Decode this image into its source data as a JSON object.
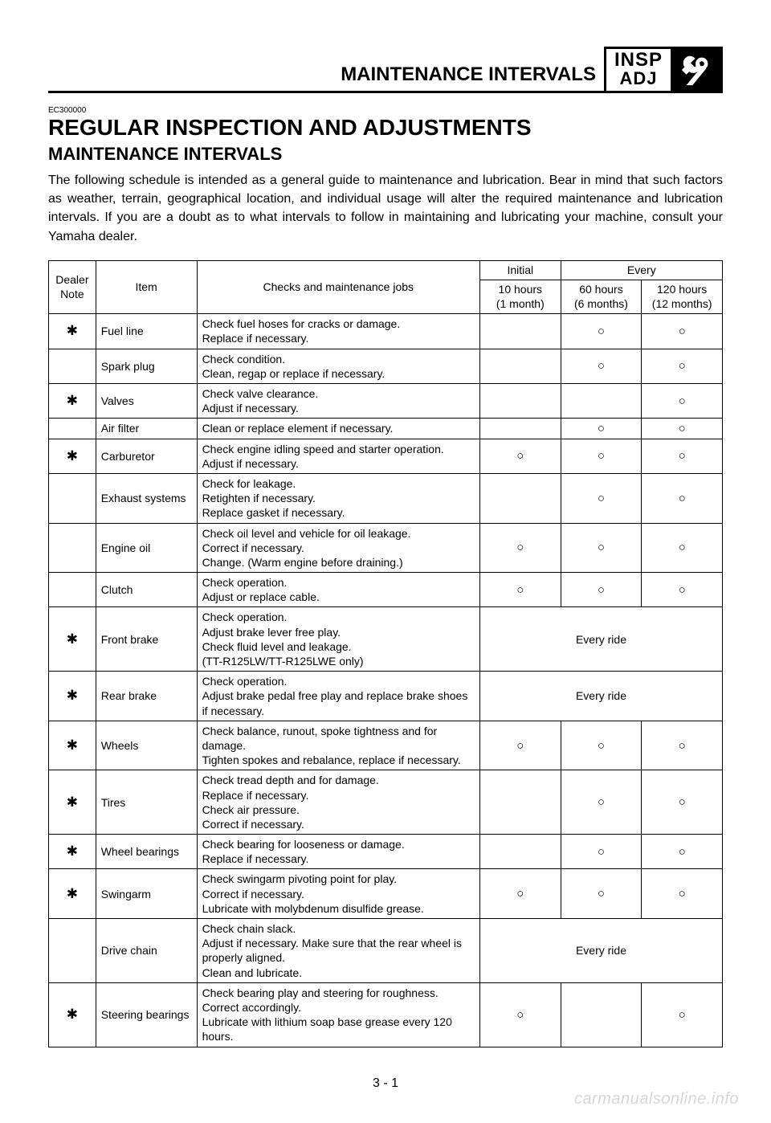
{
  "header": {
    "page_header_title": "MAINTENANCE INTERVALS",
    "insp_line1": "INSP",
    "insp_line2": "ADJ"
  },
  "section": {
    "ec_code": "EC300000",
    "title": "REGULAR INSPECTION AND ADJUSTMENTS",
    "subtitle": "MAINTENANCE INTERVALS",
    "intro": "The following schedule is intended as a general guide to maintenance and lubrication. Bear in mind that such factors as weather, terrain, geographical location, and individual usage will alter the required maintenance and lubrication intervals. If you are a doubt as to what intervals to follow in maintaining and lubricating your machine, consult your Yamaha dealer."
  },
  "table": {
    "head": {
      "dealer_note": "Dealer\nNote",
      "item": "Item",
      "checks": "Checks and maintenance jobs",
      "initial": "Initial",
      "every": "Every",
      "col_10h_a": "10 hours",
      "col_10h_b": "(1 month)",
      "col_60h_a": "60 hours",
      "col_60h_b": "(6 months)",
      "col_120h_a": "120 hours",
      "col_120h_b": "(12 months)"
    },
    "circle": "○",
    "star": "✱",
    "every_ride_text": "Every ride",
    "rows": [
      {
        "dealer": true,
        "item": "Fuel line",
        "checks": "Check fuel hoses for cracks or damage.\nReplace if necessary.",
        "marks": [
          "",
          "○",
          "○"
        ]
      },
      {
        "dealer": false,
        "item": "Spark plug",
        "checks": "Check condition.\nClean, regap or replace if necessary.",
        "marks": [
          "",
          "○",
          "○"
        ]
      },
      {
        "dealer": true,
        "item": "Valves",
        "checks": "Check valve clearance.\nAdjust if necessary.",
        "marks": [
          "",
          "",
          "○"
        ]
      },
      {
        "dealer": false,
        "item": "Air filter",
        "checks": "Clean or replace element if necessary.",
        "marks": [
          "",
          "○",
          "○"
        ]
      },
      {
        "dealer": true,
        "item": "Carburetor",
        "checks": "Check engine idling speed and starter operation.\nAdjust if necessary.",
        "marks": [
          "○",
          "○",
          "○"
        ]
      },
      {
        "dealer": false,
        "item": "Exhaust systems",
        "checks": "Check for leakage.\nRetighten if necessary.\nReplace gasket if necessary.",
        "marks": [
          "",
          "○",
          "○"
        ]
      },
      {
        "dealer": false,
        "item": "Engine oil",
        "checks": "Check oil level and vehicle for oil leakage.\nCorrect if necessary.\nChange. (Warm engine before draining.)",
        "marks": [
          "○",
          "○",
          "○"
        ]
      },
      {
        "dealer": false,
        "item": "Clutch",
        "checks": "Check operation.\nAdjust or replace cable.",
        "marks": [
          "○",
          "○",
          "○"
        ]
      },
      {
        "dealer": true,
        "item": "Front brake",
        "checks": "Check operation.\nAdjust brake lever free play.\nCheck fluid level and leakage.\n(TT-R125LW/TT-R125LWE only)",
        "every_ride": true
      },
      {
        "dealer": true,
        "item": "Rear brake",
        "checks": "Check operation.\nAdjust brake pedal free play and replace brake shoes if necessary.",
        "every_ride": true
      },
      {
        "dealer": true,
        "item": "Wheels",
        "checks": "Check balance, runout, spoke tightness and for damage.\nTighten spokes and rebalance, replace if necessary.",
        "marks": [
          "○",
          "○",
          "○"
        ]
      },
      {
        "dealer": true,
        "item": "Tires",
        "checks": "Check tread depth and for damage.\nReplace if necessary.\nCheck air pressure.\nCorrect if necessary.",
        "marks": [
          "",
          "○",
          "○"
        ]
      },
      {
        "dealer": true,
        "item": "Wheel bearings",
        "checks": "Check bearing for looseness or damage.\nReplace if necessary.",
        "marks": [
          "",
          "○",
          "○"
        ]
      },
      {
        "dealer": true,
        "item": "Swingarm",
        "checks": "Check swingarm pivoting point for play.\nCorrect if necessary.\nLubricate with molybdenum disulfide grease.",
        "marks": [
          "○",
          "○",
          "○"
        ]
      },
      {
        "dealer": false,
        "item": "Drive chain",
        "checks": "Check chain slack.\nAdjust if necessary. Make sure that the rear wheel is properly aligned.\nClean and lubricate.",
        "every_ride": true
      },
      {
        "dealer": true,
        "item": "Steering bearings",
        "checks": "Check bearing play and steering for roughness.\nCorrect accordingly.\nLubricate with lithium soap base grease every 120 hours.",
        "marks": [
          "○",
          "",
          "○"
        ]
      }
    ]
  },
  "footer": {
    "page_number": "3 - 1",
    "watermark": "carmanualsonline.info"
  }
}
